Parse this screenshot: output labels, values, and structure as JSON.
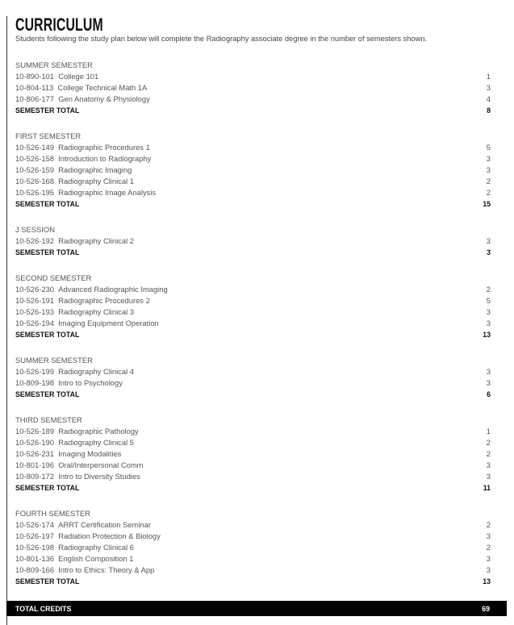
{
  "title": "CURRICULUM",
  "subtitle": "Students following the study plan below will complete the Radiography associate degree in the number of semesters shown.",
  "sections": [
    {
      "name": "SUMMER SEMESTER",
      "courses": [
        {
          "code": "10-890-101",
          "title": "College 101",
          "credits": "1"
        },
        {
          "code": "10-804-113",
          "title": "College Technical Math 1A",
          "credits": "3"
        },
        {
          "code": "10-806-177",
          "title": "Gen Anatomy & Physiology",
          "credits": "4"
        }
      ],
      "total_label": "SEMESTER TOTAL",
      "total": "8"
    },
    {
      "name": "FIRST SEMESTER",
      "courses": [
        {
          "code": "10-526-149",
          "title": "Radiographic Procedures 1",
          "credits": "5"
        },
        {
          "code": "10-526-158",
          "title": "Introduction to Radiography",
          "credits": "3"
        },
        {
          "code": "10-526-159",
          "title": "Radiographic Imaging",
          "credits": "3"
        },
        {
          "code": "10-526-168",
          "title": "Radiography Clinical 1",
          "credits": "2"
        },
        {
          "code": "10-526-195",
          "title": "Radiographic Image Analysis",
          "credits": "2"
        }
      ],
      "total_label": "SEMESTER TOTAL",
      "total": "15"
    },
    {
      "name": "J SESSION",
      "courses": [
        {
          "code": "10-526-192",
          "title": "Radiography Clinical 2",
          "credits": "3"
        }
      ],
      "total_label": "SEMESTER TOTAL",
      "total": "3"
    },
    {
      "name": "SECOND SEMESTER",
      "courses": [
        {
          "code": "10-526-230",
          "title": "Advanced Radiographic Imaging",
          "credits": "2"
        },
        {
          "code": "10-526-191",
          "title": "Radiographic Procedures 2",
          "credits": "5"
        },
        {
          "code": "10-526-193",
          "title": "Radiography Clinical 3",
          "credits": "3"
        },
        {
          "code": "10-526-194",
          "title": "Imaging Equipment Operation",
          "credits": "3"
        }
      ],
      "total_label": "SEMESTER TOTAL",
      "total": "13"
    },
    {
      "name": "SUMMER SEMESTER",
      "courses": [
        {
          "code": "10-526-199",
          "title": "Radiography Clinical 4",
          "credits": "3"
        },
        {
          "code": "10-809-198",
          "title": "Intro to Psychology",
          "credits": "3"
        }
      ],
      "total_label": "SEMESTER TOTAL",
      "total": "6"
    },
    {
      "name": "THIRD SEMESTER",
      "courses": [
        {
          "code": "10-526-189",
          "title": "Radiographic Pathology",
          "credits": "1"
        },
        {
          "code": "10-526-190",
          "title": "Radiography Clinical 5",
          "credits": "2"
        },
        {
          "code": "10-526-231",
          "title": "Imaging Modalities",
          "credits": "2"
        },
        {
          "code": "10-801-196",
          "title": "Oral/Interpersonal Comm",
          "credits": "3"
        },
        {
          "code": "10-809-172",
          "title": "Intro to Diversity Studies",
          "credits": "3"
        }
      ],
      "total_label": "SEMESTER TOTAL",
      "total": "11"
    },
    {
      "name": "FOURTH SEMESTER",
      "courses": [
        {
          "code": "10-526-174",
          "title": "ARRT Certification Seminar",
          "credits": "2"
        },
        {
          "code": "10-526-197",
          "title": "Radiation Protection & Biology",
          "credits": "3"
        },
        {
          "code": "10-526-198",
          "title": "Radiography Clinical 6",
          "credits": "2"
        },
        {
          "code": "10-801-136",
          "title": "English Composition 1",
          "credits": "3"
        },
        {
          "code": "10-809-166",
          "title": "Intro to Ethics: Theory & App",
          "credits": "3"
        }
      ],
      "total_label": "SEMESTER TOTAL",
      "total": "13"
    }
  ],
  "grand_total": {
    "label": "TOTAL CREDITS",
    "value": "69"
  }
}
